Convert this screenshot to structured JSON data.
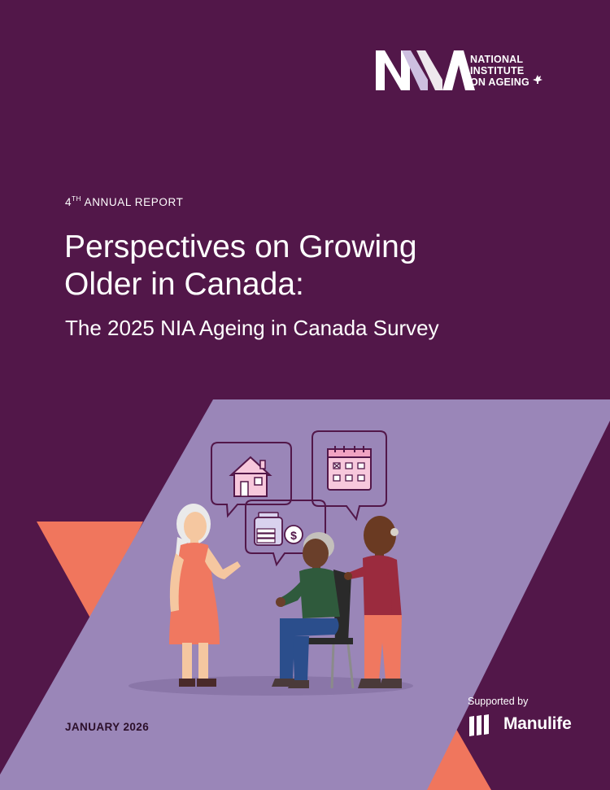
{
  "colors": {
    "background": "#521749",
    "panel": "#9a86b8",
    "accent": "#f0765d",
    "text_light": "#ffffff",
    "text_dark": "#2c0f2a"
  },
  "logo": {
    "line1": "NATIONAL",
    "line2": "INSTITUTE",
    "line3": "ON AGEING",
    "icon": "maple-leaf-icon"
  },
  "report": {
    "edition_number": "4",
    "edition_suffix": "TH",
    "edition_label": "ANNUAL REPORT"
  },
  "title": {
    "line1": "Perspectives on Growing",
    "line2": "Older in Canada:"
  },
  "subtitle": "The 2025 NIA Ageing in Canada Survey",
  "illustration": {
    "icons": [
      "house-icon",
      "calendar-icon",
      "savings-jar-icon",
      "dollar-coin-icon"
    ]
  },
  "date": "JANUARY 2026",
  "sponsor": {
    "label": "Supported by",
    "name": "Manulife",
    "icon": "manulife-logo-icon"
  }
}
